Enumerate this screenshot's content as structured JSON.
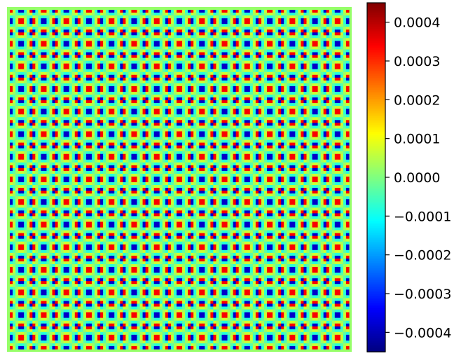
{
  "chart_data": {
    "type": "heatmap",
    "title": "",
    "xlabel": "",
    "ylabel": "",
    "grid": false,
    "pattern": {
      "cells_per_side": 15,
      "background_value": 2e-05,
      "description_values": {
        "positive_peak": 0.0004,
        "negative_peak": -0.00045
      }
    },
    "colorbar": {
      "colormap": "jet",
      "vmin": -0.00045,
      "vmax": 0.00045,
      "ticks": [
        0.0004,
        0.0003,
        0.0002,
        0.0001,
        0.0,
        -0.0001,
        -0.0002,
        -0.0003,
        -0.0004
      ],
      "tick_labels": [
        "0.0004",
        "0.0003",
        "0.0002",
        "0.0001",
        "0.0000",
        "−0.0001",
        "−0.0002",
        "−0.0003",
        "−0.0004"
      ]
    }
  }
}
